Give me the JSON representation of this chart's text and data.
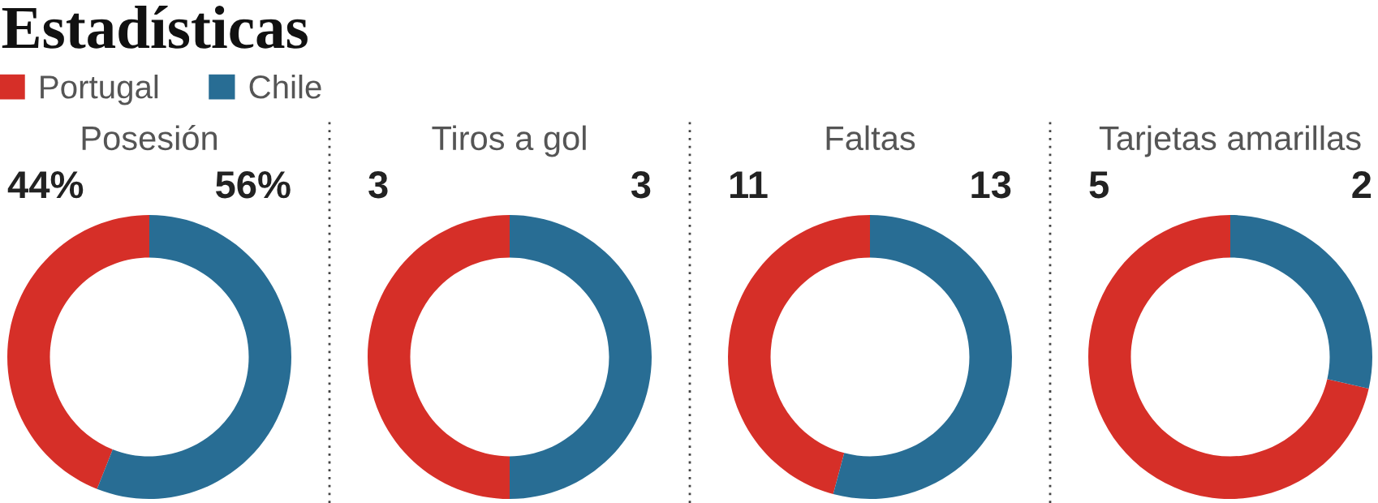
{
  "chart_data": [
    {
      "type": "other",
      "title": "Estadísticas"
    },
    {
      "type": "donut",
      "title": "Posesión",
      "categories": [
        "Portugal",
        "Chile"
      ],
      "values": [
        44,
        56
      ],
      "colors": [
        "#d62f28",
        "#286d94"
      ],
      "value_labels": [
        "44%",
        "56%"
      ],
      "legend": "top left"
    },
    {
      "type": "donut",
      "title": "Tiros a gol",
      "categories": [
        null,
        null
      ],
      "values": [
        3,
        3
      ],
      "colors": [
        "#d62f28",
        "#286d94"
      ],
      "data_labels": true
    },
    {
      "type": "donut",
      "title": "Faltas",
      "categories": [
        null,
        null
      ],
      "values": [
        11,
        13
      ],
      "colors": [
        "#d62f28",
        "#286d94"
      ],
      "data_labels": true
    },
    {
      "type": "donut",
      "title": "Tarjetas amarillas",
      "categories": [
        null,
        null
      ],
      "values": [
        5,
        2
      ],
      "colors": [
        "#d62f28",
        "#286d94"
      ],
      "data_labels": true
    }
  ]
}
